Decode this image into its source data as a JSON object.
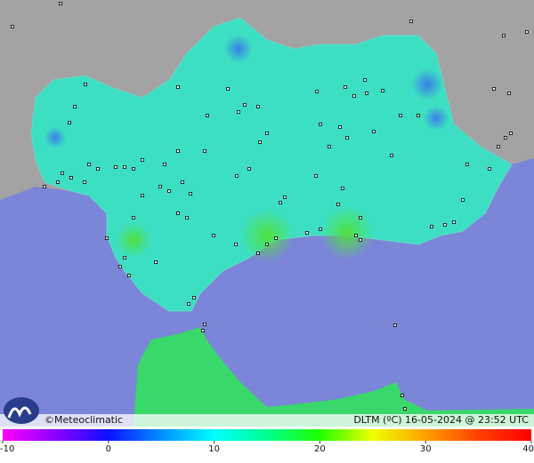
{
  "map": {
    "brand": "©Meteoclimatic",
    "caption": "DLTM (ºC) 16-05-2024 @ 23:52 UTC"
  },
  "legend": {
    "range": [
      -10,
      40
    ],
    "ticks": [
      -10,
      0,
      10,
      20,
      30,
      40
    ]
  }
}
